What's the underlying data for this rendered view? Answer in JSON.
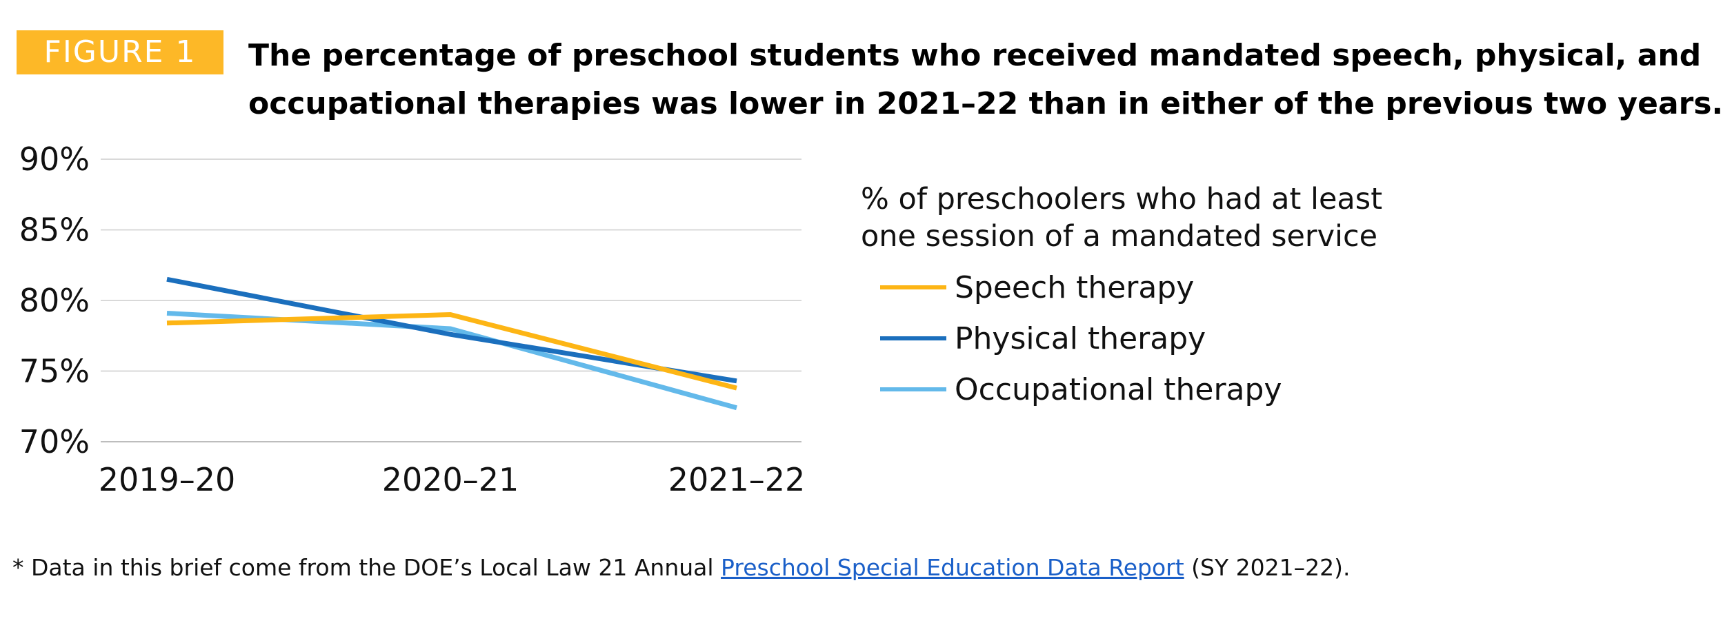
{
  "header": {
    "figure_label": "FIGURE 1",
    "title_line1": "The percentage of preschool students who received mandated speech, physical, and",
    "title_line2": "occupational therapies was lower in 2021–22 than in either of the previous two years."
  },
  "chart_data": {
    "type": "line",
    "title": "",
    "xlabel": "",
    "ylabel": "",
    "categories": [
      "2019–20",
      "2020–21",
      "2021–22"
    ],
    "ylim": [
      70,
      90
    ],
    "yticks": [
      70,
      75,
      80,
      85,
      90
    ],
    "ytick_labels": [
      "70%",
      "75%",
      "80%",
      "85%",
      "90%"
    ],
    "grid": true,
    "legend_title_line1": "% of preschoolers who had at least",
    "legend_title_line2": "one session of a mandated service",
    "legend_position": "right",
    "series": [
      {
        "name": "Speech therapy",
        "color": "#fdb515",
        "values": [
          78.4,
          79.0,
          73.8
        ]
      },
      {
        "name": "Physical therapy",
        "color": "#1b6fbd",
        "values": [
          81.5,
          77.6,
          74.3
        ]
      },
      {
        "name": "Occupational therapy",
        "color": "#63b9ea",
        "values": [
          79.1,
          78.0,
          72.4
        ]
      }
    ]
  },
  "footer": {
    "prefix": "* Data in this brief come from the DOE’s Local Law 21 Annual ",
    "link_text": "Preschool Special Education Data Report",
    "suffix": " (SY 2021–22)."
  }
}
